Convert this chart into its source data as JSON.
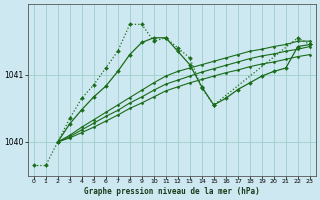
{
  "title": "Graphe pression niveau de la mer (hPa)",
  "bg_color": "#cde8f0",
  "plot_bg_color": "#cde8f0",
  "grid_color": "#9ecfca",
  "line_color": "#1a6b1a",
  "xlim": [
    -0.5,
    23.5
  ],
  "ylim": [
    1039.5,
    1042.05
  ],
  "yticks": [
    1040,
    1041
  ],
  "xticks": [
    0,
    1,
    2,
    3,
    4,
    5,
    6,
    7,
    8,
    9,
    10,
    11,
    12,
    13,
    14,
    15,
    16,
    17,
    18,
    19,
    20,
    21,
    22,
    23
  ],
  "series": [
    {
      "x": [
        0,
        1,
        2,
        3,
        4,
        5,
        6,
        7,
        8,
        9,
        10,
        11,
        12,
        13,
        14,
        15,
        22,
        23
      ],
      "y": [
        1039.65,
        1039.65,
        1040.0,
        1040.35,
        1040.65,
        1040.85,
        1041.1,
        1041.35,
        1041.75,
        1041.75,
        1041.5,
        1041.55,
        1041.4,
        1041.25,
        1040.8,
        1040.55,
        1041.55,
        1041.45
      ],
      "linestyle": ":",
      "marker": "D",
      "markersize": 2.0,
      "linewidth": 0.9
    },
    {
      "x": [
        2,
        3,
        4,
        5,
        6,
        7,
        8,
        9,
        10,
        11,
        12,
        13,
        14,
        15,
        16,
        17,
        18,
        19,
        20,
        21,
        22,
        23
      ],
      "y": [
        1040.0,
        1040.1,
        1040.22,
        1040.33,
        1040.44,
        1040.55,
        1040.66,
        1040.77,
        1040.88,
        1040.98,
        1041.05,
        1041.1,
        1041.15,
        1041.2,
        1041.25,
        1041.3,
        1041.35,
        1041.38,
        1041.42,
        1041.45,
        1041.5,
        1041.5
      ],
      "linestyle": "-",
      "marker": "D",
      "markersize": 1.5,
      "linewidth": 0.8
    },
    {
      "x": [
        2,
        3,
        4,
        5,
        6,
        7,
        8,
        9,
        10,
        11,
        12,
        13,
        14,
        15,
        16,
        17,
        18,
        19,
        20,
        21,
        22,
        23
      ],
      "y": [
        1040.0,
        1040.08,
        1040.18,
        1040.28,
        1040.38,
        1040.47,
        1040.58,
        1040.67,
        1040.77,
        1040.86,
        1040.92,
        1040.98,
        1041.04,
        1041.09,
        1041.14,
        1041.19,
        1041.24,
        1041.28,
        1041.31,
        1041.35,
        1041.38,
        1041.42
      ],
      "linestyle": "-",
      "marker": "D",
      "markersize": 1.5,
      "linewidth": 0.8
    },
    {
      "x": [
        2,
        3,
        4,
        5,
        6,
        7,
        8,
        9,
        10,
        11,
        12,
        13,
        14,
        15,
        16,
        17,
        18,
        19,
        20,
        21,
        22,
        23
      ],
      "y": [
        1040.0,
        1040.06,
        1040.14,
        1040.22,
        1040.31,
        1040.4,
        1040.5,
        1040.58,
        1040.67,
        1040.76,
        1040.82,
        1040.88,
        1040.93,
        1040.98,
        1041.03,
        1041.07,
        1041.12,
        1041.16,
        1041.19,
        1041.23,
        1041.27,
        1041.3
      ],
      "linestyle": "-",
      "marker": "D",
      "markersize": 1.5,
      "linewidth": 0.8
    },
    {
      "x": [
        2,
        3,
        4,
        5,
        6,
        7,
        8,
        9,
        10,
        11,
        12,
        13,
        14,
        15,
        16,
        17,
        18,
        19,
        20,
        21,
        22,
        23
      ],
      "y": [
        1040.0,
        1040.27,
        1040.48,
        1040.67,
        1040.83,
        1041.05,
        1041.3,
        1041.48,
        1041.55,
        1041.55,
        1041.35,
        1041.15,
        1040.82,
        1040.55,
        1040.65,
        1040.78,
        1040.88,
        1040.98,
        1041.05,
        1041.1,
        1041.42,
        1041.45
      ],
      "linestyle": "-",
      "marker": "D",
      "markersize": 2.0,
      "linewidth": 0.9
    }
  ]
}
